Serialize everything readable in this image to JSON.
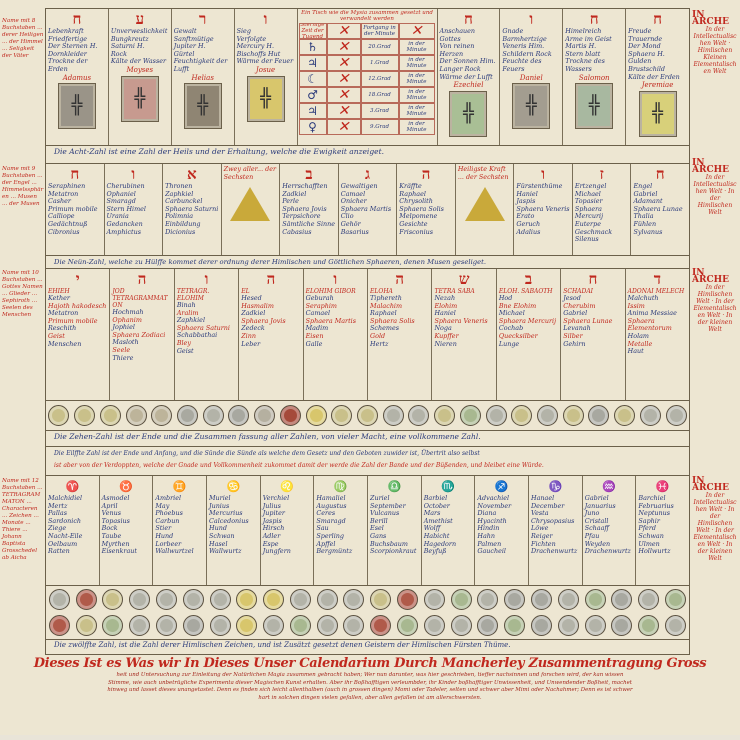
{
  "row1": {
    "left": [
      {
        "letter": "ח",
        "lines": [
          "Lebenkraft",
          "Friedfertige",
          "Der Sternen H.",
          "Dornkleider",
          "Trockne der Erden"
        ],
        "name": "Adamus"
      },
      {
        "letter": "ע",
        "lines": [
          "Unverweslichkeit",
          "Bungkreutz",
          "Saturni H.",
          "Rock",
          "Kälte der Wasser"
        ],
        "name": "Moyses"
      },
      {
        "letter": "ר",
        "lines": [
          "Gewalt",
          "Sanftmütige",
          "Jupiter H.",
          "Gürtel",
          "Feuchtigkeit der Lufft"
        ],
        "name": "Helias"
      },
      {
        "letter": "ו",
        "lines": [
          "Sieg",
          "Verfolgte",
          "Mercury H.",
          "Bischoffs Hut",
          "Wärme der Feuer"
        ],
        "name": "Josue"
      }
    ],
    "right": [
      {
        "letter": "ח",
        "lines": [
          "Anschauen Gottes",
          "Von reinen Herzen",
          "Der Sonnen Him.",
          "Langer Rock",
          "Wärme der Lufft"
        ],
        "name": "Ezechiel"
      },
      {
        "letter": "ו",
        "lines": [
          "Gnade",
          "Barmhertzige",
          "Veneris Him.",
          "Schildern Rock",
          "Feuchte des Feuers"
        ],
        "name": "Daniel"
      },
      {
        "letter": "ח",
        "lines": [
          "Himelreich",
          "Arme im Geist",
          "Martis H.",
          "Stern blatt",
          "Trockne des Wassers"
        ],
        "name": "Salomon"
      },
      {
        "letter": "ח",
        "lines": [
          "Freude",
          "Trauernde",
          "Der Mond Sphaera H.",
          "Gulden Brustschild",
          "Kälte der Erden"
        ],
        "name": "Jeremiae"
      }
    ],
    "seal_colors": [
      "#9a9488",
      "#c79a8f",
      "#8f8573",
      "#d8c66c",
      "#a9bf95",
      "#a39d90",
      "#a8b8a0",
      "#d8d07a"
    ],
    "table": {
      "header": "Ein Tisch wie die Mysia zusammen gesetzt und verwandelt werden",
      "col_heads": [
        "Sternige Zeit der Tugend",
        "Fortgang in der Minute"
      ],
      "planets": [
        "♄",
        "♃",
        "☾",
        "♂",
        "♃",
        "♀"
      ],
      "degrees": [
        "20.Grad",
        "1.Grad",
        "12.Grad",
        "18.Grad",
        "3.Grad",
        "9.Grad"
      ],
      "minute": "in der Minute"
    },
    "caption": "Die Acht-Zahl ist eine Zahl der Heils und der Erhaltung, welche die Ewigkeit anzeiget."
  },
  "row2": {
    "cols": [
      {
        "letter": "ח",
        "lines": [
          "Seraphinen",
          "Metatron",
          "Casher",
          "Primum mobile",
          "Calliope",
          "Gedächtnuß",
          "Cibronius"
        ]
      },
      {
        "letter": "ו",
        "lines": [
          "Cherubinen",
          "Ophaniel",
          "Smaragd",
          "Stern Himel",
          "Urania",
          "Gedancken",
          "Amphictus"
        ]
      },
      {
        "letter": "א",
        "lines": [
          "Thronen",
          "Zaphkiel",
          "Carbunckel",
          "Sphaera Saturni",
          "Polimnia",
          "Einbildung",
          "Dicionius"
        ]
      },
      {
        "triangle": true,
        "title": "Zwey aller... der Sechsten"
      },
      {
        "letter": "ב",
        "lines": [
          "Herrschafften",
          "Zadkiel",
          "Perle",
          "Sphaera Jovis",
          "Terpsichore",
          "Sämtliche Sinne",
          "Cabasius"
        ]
      },
      {
        "letter": "ג",
        "lines": [
          "Gewaltigen",
          "Camael",
          "Onicher",
          "Sphaera Martis",
          "Clio",
          "Gehör",
          "Basarius"
        ]
      },
      {
        "letter": "ה",
        "lines": [
          "Kräffte",
          "Raphael",
          "Chrysolith",
          "Sphaera Solis",
          "Melpomene",
          "Gesichte",
          "Frisconius"
        ]
      },
      {
        "triangle": true,
        "title": "Heiligste Kraft ... der Sechsten"
      },
      {
        "letter": "ו",
        "lines": [
          "Fürstenthüme",
          "Haniel",
          "Jaspis",
          "Sphaera Veneris",
          "Erato",
          "Geruch",
          "Adalius"
        ]
      },
      {
        "letter": "ז",
        "lines": [
          "Ertzengel",
          "Michael",
          "Topasier",
          "Sphaera Mercurij",
          "Euterpe",
          "Geschmack",
          "Silenus"
        ]
      },
      {
        "letter": "ח",
        "lines": [
          "Engel",
          "Gabriel",
          "Adamant",
          "Sphaera Lunae",
          "Thalia",
          "Fühlen",
          "Sylvanus"
        ]
      }
    ],
    "caption": "Die Neün-Zahl, welche zu Hülffe kommet derer ordnung derer Himlischen und Göttlichen Sphaeren, denen Musen geseliget."
  },
  "row3": {
    "cols": [
      {
        "letter": "י",
        "name": "EHIEH",
        "lines": [
          "Kether",
          "Hajoth hakodesch",
          "Metatron",
          "Primum mobile",
          "Reschith",
          "Geist",
          "Menschen"
        ]
      },
      {
        "letter": "ה",
        "name": "JOD TETRAGRAMMATON",
        "lines": [
          "Hochmah",
          "Ophanim",
          "Jophiel",
          "Sphaera Zodiaci",
          "Masloth",
          "Seele",
          "Thiere"
        ]
      },
      {
        "letter": "ו",
        "name": "TETRAGR. ELOHIM",
        "lines": [
          "Binah",
          "Aralim",
          "Zaphkiel",
          "Sphaera Saturni",
          "Schabbathai",
          "Bley",
          "Geist"
        ]
      },
      {
        "letter": "ה",
        "name": "EL",
        "lines": [
          "Hesed",
          "Hasmalim",
          "Zadkiel",
          "Sphaera Jovis",
          "Zedeck",
          "Zinn",
          "Leber"
        ]
      },
      {
        "letter": "ו",
        "name": "ELOHIM GIBOR",
        "lines": [
          "Geburah",
          "Seraphim",
          "Camael",
          "Sphaera Martis",
          "Madim",
          "Eisen",
          "Galle"
        ]
      },
      {
        "letter": "ה",
        "name": "ELOHA",
        "lines": [
          "Tiphereth",
          "Malachim",
          "Raphael",
          "Sphaera Solis",
          "Schemes",
          "Gold",
          "Hertz"
        ]
      },
      {
        "letter": "ש",
        "name": "TETRA SABA",
        "lines": [
          "Nezah",
          "Elohim",
          "Haniel",
          "Sphaera Veneris",
          "Noga",
          "Kupffer",
          "Nieren"
        ]
      },
      {
        "letter": "ב",
        "name": "ELOH. SABAOTH",
        "lines": [
          "Hod",
          "Bne Elohim",
          "Michael",
          "Sphaera Mercurij",
          "Cochab",
          "Quecksilber",
          "Lunge"
        ]
      },
      {
        "letter": "ח",
        "name": "SCHADAI",
        "lines": [
          "Jesod",
          "Cherubim",
          "Gabriel",
          "Sphaera Lunae",
          "Levanah",
          "Silber",
          "Gehirn"
        ]
      },
      {
        "letter": "ד",
        "name": "ADONAI MELECH",
        "lines": [
          "Malchuth",
          "Issim",
          "Anima Messiae",
          "Sphaera Elementorum",
          "Holam",
          "Metalle",
          "Haut"
        ]
      }
    ],
    "coin_colors": [
      "#c9c08a",
      "#c9c08a",
      "#c9c08a",
      "#bdb49a",
      "#bdb49a",
      "#a9a9a0",
      "#b3b3a8",
      "#a8a8a0",
      "#b5b0a0",
      "#a54a3a",
      "#d8c66c",
      "#c9c08a",
      "#c9c08a",
      "#b3b3a8",
      "#b3b3a8",
      "#c9c08a",
      "#a8b890",
      "#b3b3a8",
      "#c9c08a",
      "#b3b3a8",
      "#c9c08a",
      "#a8a8a0",
      "#c9c08a",
      "#b3b3a8",
      "#b3b3a8"
    ],
    "caption": "Die Zehen-Zahl ist der Ende und die Zusammen fassung aller Zahlen, von vieler Macht, eine vollkommene Zahl."
  },
  "caption4": [
    "Die Eilffte Zahl ist der Ende und Anfang, und die Sünde die Sünde als welche dem Gesetz und den Geboten zuwider ist, Übertrit also selbst",
    "ist aber von der Verdoppten, welche der Gnade und Vollkommenheit zukommet damit der werde die Zahl der Bande und der Büßenden, und bleibet eine Würde."
  ],
  "row4": {
    "cols": [
      {
        "letter": "♈",
        "lines": [
          "Malchidiel",
          "Mertz",
          "Pallas",
          "Sardonich",
          "Ziege",
          "Nacht-Eile",
          "Oelbaum",
          "Ratten"
        ]
      },
      {
        "letter": "♉",
        "lines": [
          "Asmodel",
          "April",
          "Venus",
          "Topasius",
          "Bock",
          "Taube",
          "Myrthen",
          "Eisenkraut"
        ]
      },
      {
        "letter": "♊",
        "lines": [
          "Ambriel",
          "May",
          "Phoebus",
          "Carbun",
          "Stier",
          "Hund",
          "Lorbeer",
          "Wallwurtzel"
        ]
      },
      {
        "letter": "♋",
        "lines": [
          "Muriel",
          "Junius",
          "Mercurius",
          "Calcedonius",
          "Hund",
          "Schwan",
          "Hasel",
          "Wallwurtz"
        ]
      },
      {
        "letter": "♌",
        "lines": [
          "Verchiel",
          "Julius",
          "Jupiter",
          "Jaspis",
          "Hirsch",
          "Adler",
          "Espe",
          "Jungfern"
        ]
      },
      {
        "letter": "♍",
        "lines": [
          "Hamaliel",
          "Augustus",
          "Ceres",
          "Smaragd",
          "Sau",
          "Sperling",
          "Apffel",
          "Bergmüntz"
        ]
      },
      {
        "letter": "♎",
        "lines": [
          "Zuriel",
          "September",
          "Vulcanus",
          "Berill",
          "Esel",
          "Gans",
          "Buchsbaum",
          "Scorpionkraut"
        ]
      },
      {
        "letter": "♏",
        "lines": [
          "Barbiel",
          "October",
          "Mars",
          "Amethist",
          "Wolff",
          "Habicht",
          "Hagedorn",
          "Beyfuß"
        ]
      },
      {
        "letter": "♐",
        "lines": [
          "Advachiel",
          "November",
          "Diana",
          "Hyacinth",
          "Hindin",
          "Hahn",
          "Palmen",
          "Gaucheil"
        ]
      },
      {
        "letter": "♑",
        "lines": [
          "Hanael",
          "December",
          "Vesta",
          "Chrysopasius",
          "Löwe",
          "Reiger",
          "Fichten",
          "Drachenwurtz"
        ]
      },
      {
        "letter": "♒",
        "lines": [
          "Gabriel",
          "Januarius",
          "Juno",
          "Cristall",
          "Schaaff",
          "Pfau",
          "Weyden",
          "Drachenwurtz"
        ]
      },
      {
        "letter": "♓",
        "lines": [
          "Barchiel",
          "Februarius",
          "Neptunus",
          "Saphir",
          "Pferd",
          "Schwan",
          "Ulmen",
          "Hollwurtz"
        ]
      }
    ],
    "coin_colors_top": [
      "#b3b3a8",
      "#b05a4a",
      "#c9c08a",
      "#b3b3a8",
      "#b3b3a8",
      "#b3b3a8",
      "#b3b3a8",
      "#d8c66c",
      "#d8c66c",
      "#b3b3a8",
      "#b3b3a8",
      "#b3b3a8",
      "#c9c08a",
      "#b05a4a",
      "#b3b3a8",
      "#a8b890",
      "#b3b3a8",
      "#a8a8a0",
      "#a8a8a0",
      "#b3b3a8",
      "#a8b890",
      "#a8a8a0",
      "#b3b3a8",
      "#a8b890"
    ],
    "coin_colors_bottom": [
      "#b05a4a",
      "#c9c08a",
      "#a8b890",
      "#b3b3a8",
      "#b3b3a8",
      "#a8a8a0",
      "#b3b3a8",
      "#d8c66c",
      "#b3b3a8",
      "#a8b890",
      "#b3b3a8",
      "#b3b3a8",
      "#b05a4a",
      "#a8b890",
      "#b3b3a8",
      "#b3b3a8",
      "#a8a8a0",
      "#a8b890",
      "#a8a8a0",
      "#b3b3a8",
      "#b3b3a8",
      "#a8a8a0",
      "#a8b890",
      "#b3b3a8"
    ],
    "caption": "Die zwölffte Zahl, ist die Zahl derer Himlischen Zeichen, und ist Zusätzt gesetzt denen Geistern der Himlischen Fürsten Thüme."
  },
  "right_labels": [
    {
      "title": "IN ARCHE",
      "text": "In der Intellectualischen Welt · Himlischen Kleinen Elementalischen Welt"
    },
    {
      "title": "IN ARCHE",
      "text": "In der Intellectualischen Welt · In der Himlischen Welt"
    },
    {
      "title": "IN ARCHE",
      "text": "In der Himlischen Welt · In der Elementalischen Welt · In der kleinen Welt"
    },
    {
      "title": "IN ARCHE",
      "text": "In der Intellectualischen Welt · In der Himlischen Welt · In der Elementalischen Welt · In der kleinen Welt"
    }
  ],
  "left_labels": [
    "Name mit 8 Buchstaben ... derer Heiligen ... der Himmel ... Seligkeit der Väter",
    "Name mit 9 Buchstaben ... der Engel ... Himmelssphären ... Musen ... der Musen",
    "Name mit 10 Buchstaben ... Gottes Namen ... Glieder ... Sephiroth ... Seelen des Menschen",
    "Name mit 12 Buchstaben ... TETRAGRAMMATON ... Characteren ... Zeichen ... Monate ... Thiere ... Johann Baptista Grosschedel ab Aicha"
  ],
  "footer": {
    "title": "Dieses Ist es Was wir In Dieses Unser Calendarium Durch Mancherley Zusammentragung Gross",
    "lines": [
      "heit und Untersuchung zur Einleitung der Natürlichen Magia zusammen gebracht haben; Wer nun darunter, was hier geschrieben, tieffer nachsinnen und forschen wird, der kan wissen",
      "Stimme, wie auch unbetrügliche Experimenta dieser Magischen Kunst erhalten. Aber ihr Boßhafftigen verleumbder, ihr Kinder boßhafftiger Unwissenheit, und Unwendender Boßheit, machet",
      "hinweg und lasset dieses unangetastet. Denn es finden sich leicht allenthalben (auch in grossen dingen) Momi oder Tadeler, selten und schwer aber Mimi oder Nachahmer; Denn es ist schwer",
      "hart in solchen dingen vielen gefallen, aber allen gefallen ist am allerschwersten."
    ]
  },
  "colors": {
    "ink_blue": "#2a3a7a",
    "ink_red": "#c0281e",
    "parchment": "#ede6d2"
  }
}
